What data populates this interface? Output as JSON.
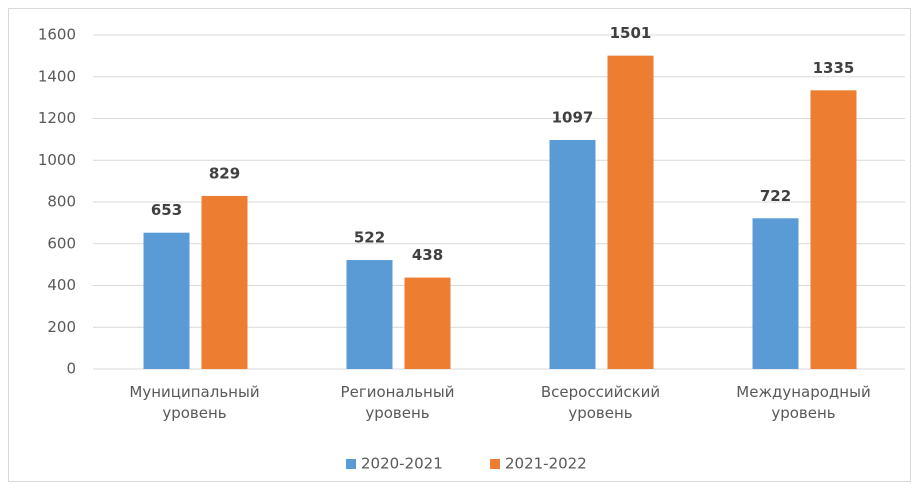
{
  "chart_data": {
    "type": "bar",
    "categories": [
      "Муниципальный уровень",
      "Региональный уровень",
      "Всероссийский уровень",
      "Международный уровень"
    ],
    "series": [
      {
        "name": "2020-2021",
        "color": "#5b9bd5",
        "values": [
          653,
          522,
          1097,
          722
        ]
      },
      {
        "name": "2021-2022",
        "color": "#ed7d31",
        "values": [
          829,
          438,
          1501,
          1335
        ]
      }
    ],
    "ylim": [
      0,
      1600
    ],
    "yticks": [
      0,
      200,
      400,
      600,
      800,
      1000,
      1200,
      1400,
      1600
    ],
    "grid": true,
    "legend": "bottom"
  }
}
